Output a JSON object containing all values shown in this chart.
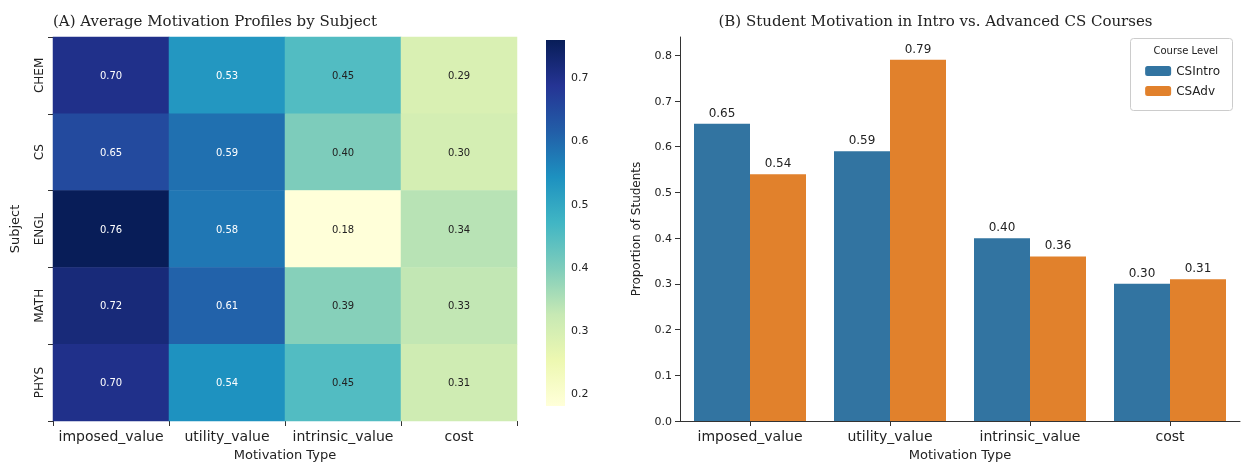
{
  "chart_data": [
    {
      "type": "heatmap",
      "title": "(A) Average Motivation Profiles by Subject",
      "xlabel": "Motivation Type",
      "ylabel": "Subject",
      "categories": [
        "imposed_value",
        "utility_value",
        "intrinsic_value",
        "cost"
      ],
      "y_categories": [
        "CHEM",
        "CS",
        "ENGL",
        "MATH",
        "PHYS"
      ],
      "cells": [
        [
          0.7,
          0.53,
          0.45,
          0.29
        ],
        [
          0.65,
          0.59,
          0.4,
          0.3
        ],
        [
          0.76,
          0.58,
          0.18,
          0.34
        ],
        [
          0.72,
          0.61,
          0.39,
          0.33
        ],
        [
          0.7,
          0.54,
          0.45,
          0.31
        ]
      ],
      "cell_labels": [
        [
          "0.70",
          "0.53",
          "0.45",
          "0.29"
        ],
        [
          "0.65",
          "0.59",
          "0.40",
          "0.30"
        ],
        [
          "0.76",
          "0.58",
          "0.18",
          "0.34"
        ],
        [
          "0.72",
          "0.61",
          "0.39",
          "0.33"
        ],
        [
          "0.70",
          "0.54",
          "0.45",
          "0.31"
        ]
      ],
      "clim": [
        0.18,
        0.76
      ],
      "cticks": [
        0.2,
        0.3,
        0.4,
        0.5,
        0.6,
        0.7
      ]
    },
    {
      "type": "bar",
      "title": "(B) Student Motivation in Intro vs. Advanced CS Courses",
      "xlabel": "Motivation Type",
      "ylabel": "Proportion of Students",
      "categories": [
        "imposed_value",
        "utility_value",
        "intrinsic_value",
        "cost"
      ],
      "series": [
        {
          "name": "CSIntro",
          "color": "#3274a1",
          "values": [
            0.65,
            0.59,
            0.4,
            0.3
          ],
          "value_labels": [
            "0.65",
            "0.59",
            "0.40",
            "0.30"
          ]
        },
        {
          "name": "CSAdv",
          "color": "#e1812c",
          "values": [
            0.54,
            0.79,
            0.36,
            0.31
          ],
          "value_labels": [
            "0.54",
            "0.79",
            "0.36",
            "0.31"
          ]
        }
      ],
      "legend_title": "Course Level",
      "legend": "top right",
      "ylim": [
        0,
        0.84
      ],
      "yticks": [
        {
          "value": 0,
          "label": "0.0"
        },
        0.1,
        0.2,
        0.3,
        0.4,
        0.5,
        0.6,
        0.7,
        0.8
      ]
    }
  ]
}
